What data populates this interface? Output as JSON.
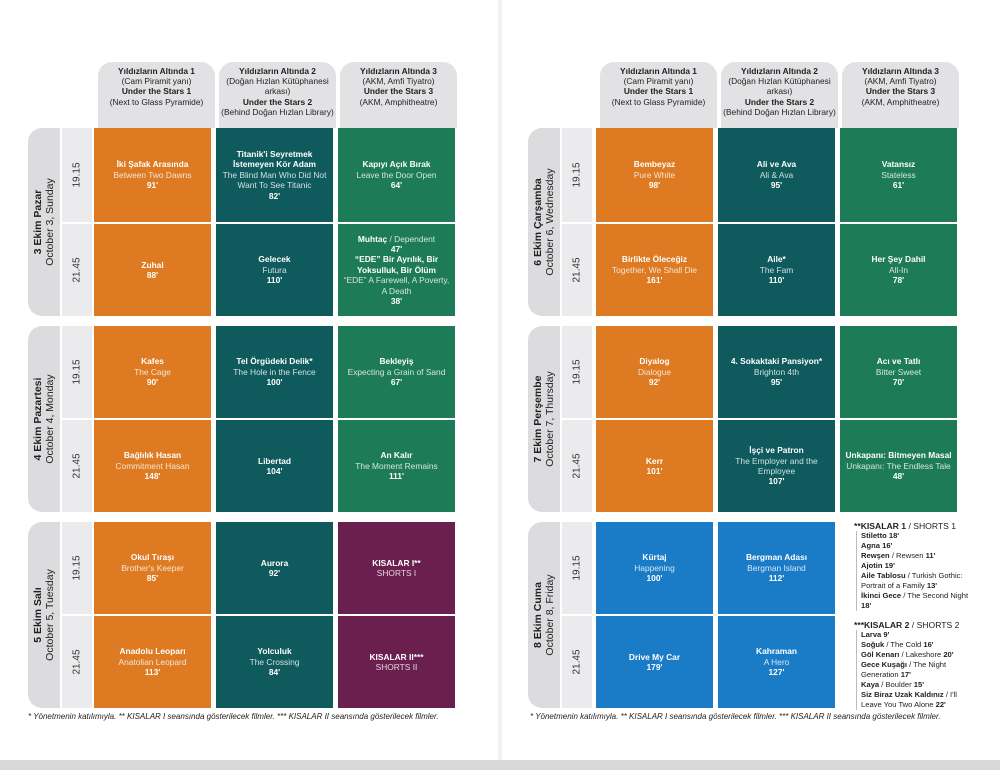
{
  "venues": [
    {
      "tr": "Yıldızların Altında 1",
      "tr_sub": "(Cam Piramit yanı)",
      "en": "Under the Stars 1",
      "en_sub": "(Next to Glass Pyramide)"
    },
    {
      "tr": "Yıldızların Altında 2",
      "tr_sub": "(Doğan Hızlan Kütüphanesi arkası)",
      "en": "Under the Stars 2",
      "en_sub": "(Behind Doğan Hızlan Library)"
    },
    {
      "tr": "Yıldızların Altında 3",
      "tr_sub": "(AKM, Amfi Tiyatro)",
      "en": "Under the Stars 3",
      "en_sub": "(AKM, Amphitheatre)"
    }
  ],
  "times": [
    "19.15",
    "21.45"
  ],
  "left": {
    "days": [
      {
        "tr": "3 Ekim Pazar",
        "en": "October 3, Sunday"
      },
      {
        "tr": "4 Ekim Pazartesi",
        "en": "October 4, Monday"
      },
      {
        "tr": "5 Ekim Salı",
        "en": "October 5, Tuesday"
      }
    ],
    "films": {
      "d1s1v1": {
        "tr": "İki Şafak Arasında",
        "en": "Between Two Dawns",
        "min": "91'"
      },
      "d1s1v2": {
        "tr": "Titanik'i Seyretmek İstemeyen Kör Adam",
        "en": "The Blind Man Who Did Not Want To See Titanic",
        "min": "82'"
      },
      "d1s1v3": {
        "tr": "Kapıyı Açık Bırak",
        "en": "Leave the Door Open",
        "min": "64'"
      },
      "d1s2v1": {
        "tr": "Zuhal",
        "en": "",
        "min": "88'"
      },
      "d1s2v2": {
        "tr": "Gelecek",
        "en": "Futura",
        "min": "110'"
      },
      "d1s2v3a": {
        "tr": "Muhtaç",
        "en": " / Dependent",
        "min": "47'"
      },
      "d1s2v3b": {
        "tr": "“EDE” Bir Ayrılık, Bir Yoksulluk, Bir Ölüm",
        "en": "“EDE” A Farewell, A Poverty, A Death",
        "min": "38'"
      },
      "d2s1v1": {
        "tr": "Kafes",
        "en": "The Cage",
        "min": "90'"
      },
      "d2s1v2": {
        "tr": "Tel Örgüdeki Delik*",
        "en": "The Hole in the Fence",
        "min": "100'"
      },
      "d2s1v3": {
        "tr": "Bekleyiş",
        "en": "Expecting a Grain of Sand",
        "min": "67'"
      },
      "d2s2v1": {
        "tr": "Bağlılık Hasan",
        "en": "Commitment Hasan",
        "min": "148'"
      },
      "d2s2v2": {
        "tr": "Libertad",
        "en": "",
        "min": "104'"
      },
      "d2s2v3": {
        "tr": "An Kalır",
        "en": "The Moment Remains",
        "min": "111'"
      },
      "d3s1v1": {
        "tr": "Okul Tıraşı",
        "en": "Brother's Keeper",
        "min": "85'"
      },
      "d3s1v2": {
        "tr": "Aurora",
        "en": "",
        "min": "92'"
      },
      "d3s1v3": {
        "tr": "KISALAR I**",
        "en": "SHORTS I",
        "min": ""
      },
      "d3s2v1": {
        "tr": "Anadolu Leoparı",
        "en": "Anatolian Leopard",
        "min": "113'"
      },
      "d3s2v2": {
        "tr": "Yolculuk",
        "en": "The Crossing",
        "min": "84'"
      },
      "d3s2v3": {
        "tr": "KISALAR II***",
        "en": "SHORTS II",
        "min": ""
      }
    },
    "footnote": "* Yönetmenin katılımıyla. ** KISALAR I seansında gösterilecek filmler. *** KISALAR II seansında gösterilecek filmler."
  },
  "right": {
    "days": [
      {
        "tr": "6 Ekim Çarşamba",
        "en": "October 6, Wednesday"
      },
      {
        "tr": "7 Ekim Perşembe",
        "en": "October 7, Thursday"
      },
      {
        "tr": "8 Ekim Cuma",
        "en": "October 8, Friday"
      }
    ],
    "films": {
      "d1s1v1": {
        "tr": "Bembeyaz",
        "en": "Pure White",
        "min": "98'"
      },
      "d1s1v2": {
        "tr": "Ali ve Ava",
        "en": "Ali & Ava",
        "min": "95'"
      },
      "d1s1v3": {
        "tr": "Vatansız",
        "en": "Stateless",
        "min": "61'"
      },
      "d1s2v1": {
        "tr": "Birlikte Öleceğiz",
        "en": "Together, We Shall Die",
        "min": "161'"
      },
      "d1s2v2": {
        "tr": "Aile*",
        "en": "The Fam",
        "min": "110'"
      },
      "d1s2v3": {
        "tr": "Her Şey Dahil",
        "en": "All-In",
        "min": "78'"
      },
      "d2s1v1": {
        "tr": "Diyalog",
        "en": "Dialogue",
        "min": "92'"
      },
      "d2s1v2": {
        "tr": "4. Sokaktaki Pansiyon*",
        "en": "Brighton 4th",
        "min": "95'"
      },
      "d2s1v3": {
        "tr": "Acı ve Tatlı",
        "en": "Bitter Sweet",
        "min": "70'"
      },
      "d2s2v1": {
        "tr": "Kerr",
        "en": "",
        "min": "101'"
      },
      "d2s2v2": {
        "tr": "İşçi ve Patron",
        "en": "The Employer and the Employee",
        "min": "107'"
      },
      "d2s2v3": {
        "tr": "Unkapanı: Bitmeyen Masal",
        "en": "Unkapanı: The Endless Tale",
        "min": "48'"
      },
      "d3s1v1": {
        "tr": "Kürtaj",
        "en": "Happening",
        "min": "100'"
      },
      "d3s1v2": {
        "tr": "Bergman Adası",
        "en": "Bergman Island",
        "min": "112'"
      },
      "d3s2v1": {
        "tr": "Drive My Car",
        "en": "",
        "min": "179'"
      },
      "d3s2v2": {
        "tr": "Kahraman",
        "en": "A Hero",
        "min": "127'"
      }
    },
    "shorts1": {
      "title": "**KISALAR 1",
      "title_en": " / SHORTS 1",
      "items": [
        {
          "tr": "Stiletto",
          "en": "",
          "min": " 18'"
        },
        {
          "tr": "Agna",
          "en": "",
          "min": " 16'"
        },
        {
          "tr": "Rewşen",
          "en": " / Rewsen",
          "min": " 11'"
        },
        {
          "tr": "Ajotin",
          "en": "",
          "min": " 19'"
        },
        {
          "tr": "Aile Tablosu",
          "en": " / Turkish Gothic: Portrait of a Family",
          "min": " 13'"
        },
        {
          "tr": "İkinci Gece",
          "en": " / The Second Night",
          "min": " 18'"
        }
      ]
    },
    "shorts2": {
      "title": "***KISALAR 2",
      "title_en": " / SHORTS 2",
      "items": [
        {
          "tr": "Larva",
          "en": "",
          "min": " 9'"
        },
        {
          "tr": "Soğuk",
          "en": " / The Cold",
          "min": " 16'"
        },
        {
          "tr": "Göl Kenarı",
          "en": " / Lakeshore",
          "min": " 20'"
        },
        {
          "tr": "Gece Kuşağı",
          "en": " / The Night Generation",
          "min": " 17'"
        },
        {
          "tr": "Kaya",
          "en": " / Boulder",
          "min": " 15'"
        },
        {
          "tr": "Siz Biraz Uzak Kaldınız",
          "en": " / I'll Leave You Two Alone",
          "min": " 22'"
        }
      ]
    },
    "footnote": "* Yönetmenin katılımıyla. ** KISALAR I seansında gösterilecek filmler. *** KISALAR II seansında gösterilecek filmler."
  },
  "colors": {
    "orange": "#dd7a22",
    "teal": "#0e5a5c",
    "green": "#1e7b58",
    "purple": "#6a1f4e",
    "blue": "#1a7cc6"
  }
}
